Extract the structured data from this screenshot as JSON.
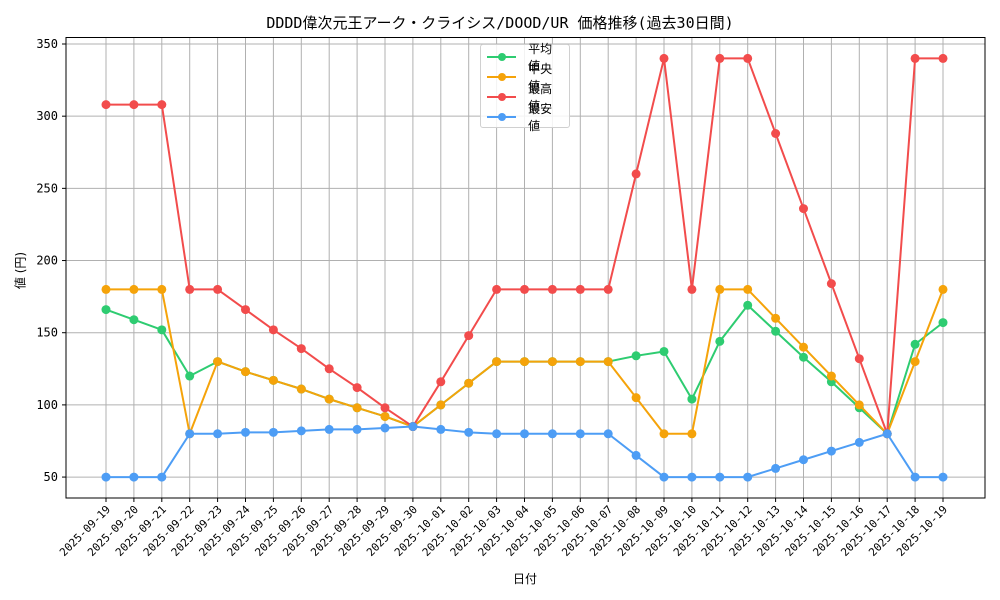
{
  "chart_data": {
    "type": "line",
    "title": "DDDD偉次元王アーク・クライシス/DOOD/UR 価格推移(過去30日間)",
    "xlabel": "日付",
    "ylabel": "値 (円)",
    "ylim": [
      35.5,
      354.5
    ],
    "yticks": [
      50,
      100,
      150,
      200,
      250,
      300,
      350
    ],
    "grid": true,
    "legend_position": "upper center",
    "x": [
      "2025-09-19",
      "2025-09-20",
      "2025-09-21",
      "2025-09-22",
      "2025-09-23",
      "2025-09-24",
      "2025-09-25",
      "2025-09-26",
      "2025-09-27",
      "2025-09-28",
      "2025-09-29",
      "2025-09-30",
      "2025-10-01",
      "2025-10-02",
      "2025-10-03",
      "2025-10-04",
      "2025-10-05",
      "2025-10-06",
      "2025-10-07",
      "2025-10-08",
      "2025-10-09",
      "2025-10-10",
      "2025-10-11",
      "2025-10-12",
      "2025-10-13",
      "2025-10-14",
      "2025-10-15",
      "2025-10-16",
      "2025-10-17",
      "2025-10-18",
      "2025-10-19"
    ],
    "series": [
      {
        "name": "平均値",
        "color": "#2ecc71",
        "values": [
          166,
          159,
          152,
          120,
          130,
          123,
          117,
          111,
          104,
          98,
          92,
          85,
          100,
          115,
          130,
          130,
          130,
          130,
          130,
          134,
          137,
          104,
          144,
          169,
          151,
          133,
          116,
          98,
          80,
          142,
          157
        ]
      },
      {
        "name": "中央値",
        "color": "#f5a30a",
        "values": [
          180,
          180,
          180,
          80,
          130,
          123,
          117,
          111,
          104,
          98,
          92,
          85,
          100,
          115,
          130,
          130,
          130,
          130,
          130,
          105,
          80,
          80,
          180,
          180,
          160,
          140,
          120,
          100,
          80,
          130,
          180
        ]
      },
      {
        "name": "最高値",
        "color": "#f24c4c",
        "values": [
          308,
          308,
          308,
          180,
          180,
          166,
          152,
          139,
          125,
          112,
          98,
          85,
          116,
          148,
          180,
          180,
          180,
          180,
          180,
          260,
          340,
          180,
          340,
          340,
          288,
          236,
          184,
          132,
          80,
          340,
          340
        ]
      },
      {
        "name": "最安値",
        "color": "#4d9df5",
        "values": [
          50,
          50,
          50,
          80,
          80,
          81,
          81,
          82,
          83,
          83,
          84,
          85,
          83,
          81,
          80,
          80,
          80,
          80,
          80,
          65,
          50,
          50,
          50,
          50,
          56,
          62,
          68,
          74,
          80,
          50,
          50
        ]
      }
    ]
  }
}
